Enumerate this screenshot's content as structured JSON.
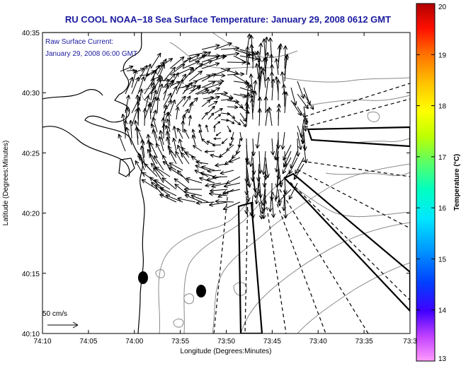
{
  "chart_data": {
    "type": "vector_field_map",
    "title": "RU COOL  NOAA−18  Sea Surface Temperature:  January 29, 2008 0612 GMT",
    "subtitle_lines": [
      "Raw Surface Current:",
      "January 29, 2008 06:00 GMT"
    ],
    "xlabel": "Longitude (Degrees:Minutes)",
    "ylabel": "Latitude (Degrees:Minutes)",
    "x_tick_labels": [
      "74:10",
      "74:05",
      "74:00",
      "73:55",
      "73:50",
      "73:45",
      "73:40",
      "73:35",
      "73:3"
    ],
    "y_tick_labels": [
      "40:10",
      "40:15",
      "40:20",
      "40:25",
      "40:30",
      "40:35"
    ],
    "xlim_minutes_west": [
      4450,
      4410
    ],
    "ylim_minutes_north": [
      2410,
      2435
    ],
    "scale_label": "50 cm/s",
    "colorbar": {
      "label": "Temperature (°C)",
      "range": [
        13,
        20
      ],
      "ticks": [
        "20",
        "19",
        "18",
        "17",
        "16",
        "15",
        "14",
        "13"
      ]
    },
    "markers": [
      {
        "name": "station-1",
        "lon_min_w": 4438.9,
        "lat_min_n": 2414.7
      },
      {
        "name": "station-2",
        "lon_min_w": 4432.4,
        "lat_min_n": 2413.5
      }
    ],
    "vector_field": {
      "units": "cm/s",
      "center": {
        "lon_min_w": 4426.0,
        "lat_min_n": 2427.0
      },
      "pattern": "clockwise gyre, strongest along 73:47-73:50 meridians"
    }
  }
}
